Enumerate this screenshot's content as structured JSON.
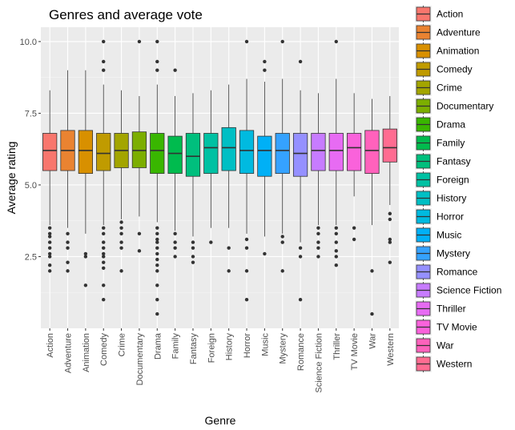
{
  "chart_data": {
    "type": "boxplot",
    "title": "Genres and average vote",
    "xlabel": "Genre",
    "ylabel": "Average rating",
    "ylim": [
      0,
      10.5
    ],
    "yticks": [
      2.5,
      5.0,
      7.5,
      10.0
    ],
    "ytick_labels": [
      "2.5",
      "5.0",
      "7.5",
      "10.0"
    ],
    "grid": true,
    "legend_position": "right",
    "categories": [
      "Action",
      "Adventure",
      "Animation",
      "Comedy",
      "Crime",
      "Documentary",
      "Drama",
      "Family",
      "Fantasy",
      "Foreign",
      "History",
      "Horror",
      "Music",
      "Mystery",
      "Romance",
      "Science Fiction",
      "Thriller",
      "TV Movie",
      "War",
      "Western"
    ],
    "colors": [
      "#F8766D",
      "#EA8331",
      "#D89000",
      "#C09B00",
      "#A3A500",
      "#7CAE00",
      "#39B600",
      "#00BB4E",
      "#00BF7D",
      "#00C1A3",
      "#00BFC4",
      "#00BAE0",
      "#00B0F6",
      "#35A2FF",
      "#9590FF",
      "#C77CFF",
      "#E76BF3",
      "#FA62DB",
      "#FF62BC",
      "#FF6C91"
    ],
    "boxes": [
      {
        "whisker_low": 3.6,
        "q1": 5.5,
        "median": 6.2,
        "q3": 6.8,
        "whisker_high": 8.3,
        "outliers": [
          3.5,
          3.3,
          3.2,
          3.0,
          2.8,
          2.6,
          2.5,
          2.2,
          2.0
        ]
      },
      {
        "whisker_low": 3.5,
        "q1": 5.5,
        "median": 6.2,
        "q3": 6.9,
        "whisker_high": 9.0,
        "outliers": [
          3.3,
          3.0,
          2.8,
          2.3,
          2.0
        ]
      },
      {
        "whisker_low": 3.3,
        "q1": 5.4,
        "median": 6.2,
        "q3": 6.9,
        "whisker_high": 9.0,
        "outliers": [
          2.6,
          2.5,
          1.5
        ]
      },
      {
        "whisker_low": 3.6,
        "q1": 5.5,
        "median": 6.1,
        "q3": 6.8,
        "whisker_high": 8.5,
        "outliers": [
          10.0,
          9.3,
          9.0,
          3.5,
          3.3,
          3.0,
          2.8,
          2.6,
          2.5,
          2.3,
          2.1,
          1.5,
          1.0
        ]
      },
      {
        "whisker_low": 3.8,
        "q1": 5.6,
        "median": 6.2,
        "q3": 6.8,
        "whisker_high": 8.3,
        "outliers": [
          3.7,
          3.5,
          3.3,
          3.0,
          2.8,
          2.0
        ]
      },
      {
        "whisker_low": 3.9,
        "q1": 5.6,
        "median": 6.2,
        "q3": 6.85,
        "whisker_high": 8.1,
        "outliers": [
          10.0,
          3.3,
          2.7
        ]
      },
      {
        "whisker_low": 3.7,
        "q1": 5.4,
        "median": 6.2,
        "q3": 6.8,
        "whisker_high": 8.5,
        "outliers": [
          10.0,
          9.3,
          9.0,
          3.5,
          3.3,
          3.1,
          3.0,
          2.8,
          2.6,
          2.4,
          2.2,
          2.0,
          1.5,
          1.0,
          0.5
        ]
      },
      {
        "whisker_low": 3.4,
        "q1": 5.4,
        "median": 6.1,
        "q3": 6.7,
        "whisker_high": 8.1,
        "outliers": [
          9.0,
          3.3,
          3.0,
          2.8,
          2.5
        ]
      },
      {
        "whisker_low": 3.2,
        "q1": 5.3,
        "median": 6.0,
        "q3": 6.8,
        "whisker_high": 8.2,
        "outliers": [
          3.0,
          2.8,
          2.5,
          2.3
        ]
      },
      {
        "whisker_low": 3.5,
        "q1": 5.4,
        "median": 6.3,
        "q3": 6.8,
        "whisker_high": 8.3,
        "outliers": [
          3.0
        ]
      },
      {
        "whisker_low": 3.5,
        "q1": 5.5,
        "median": 6.3,
        "q3": 7.0,
        "whisker_high": 8.5,
        "outliers": [
          2.8,
          2.0
        ]
      },
      {
        "whisker_low": 3.3,
        "q1": 5.4,
        "median": 6.2,
        "q3": 6.9,
        "whisker_high": 8.7,
        "outliers": [
          10.0,
          3.1,
          2.8,
          2.0,
          1.0
        ]
      },
      {
        "whisker_low": 3.2,
        "q1": 5.3,
        "median": 6.2,
        "q3": 6.7,
        "whisker_high": 8.6,
        "outliers": [
          9.3,
          9.0,
          2.6
        ]
      },
      {
        "whisker_low": 3.3,
        "q1": 5.4,
        "median": 6.2,
        "q3": 6.8,
        "whisker_high": 8.7,
        "outliers": [
          10.0,
          3.2,
          3.0,
          2.0
        ]
      },
      {
        "whisker_low": 3.0,
        "q1": 5.3,
        "median": 6.1,
        "q3": 6.8,
        "whisker_high": 8.3,
        "outliers": [
          9.3,
          2.8,
          2.5,
          1.0
        ]
      },
      {
        "whisker_low": 3.6,
        "q1": 5.5,
        "median": 6.2,
        "q3": 6.8,
        "whisker_high": 8.2,
        "outliers": [
          3.5,
          3.3,
          3.0,
          2.8,
          2.5
        ]
      },
      {
        "whisker_low": 3.6,
        "q1": 5.5,
        "median": 6.2,
        "q3": 6.8,
        "whisker_high": 8.7,
        "outliers": [
          10.0,
          3.5,
          3.3,
          3.0,
          2.7,
          2.5,
          2.2
        ]
      },
      {
        "whisker_low": 4.6,
        "q1": 5.5,
        "median": 6.3,
        "q3": 6.8,
        "whisker_high": 8.2,
        "outliers": [
          3.5,
          3.1
        ]
      },
      {
        "whisker_low": 3.6,
        "q1": 5.4,
        "median": 6.2,
        "q3": 6.9,
        "whisker_high": 8.0,
        "outliers": [
          2.0,
          0.5
        ]
      },
      {
        "whisker_low": 4.3,
        "q1": 5.8,
        "median": 6.3,
        "q3": 6.95,
        "whisker_high": 8.1,
        "outliers": [
          4.0,
          3.8,
          3.1,
          3.0,
          2.3
        ]
      }
    ]
  }
}
